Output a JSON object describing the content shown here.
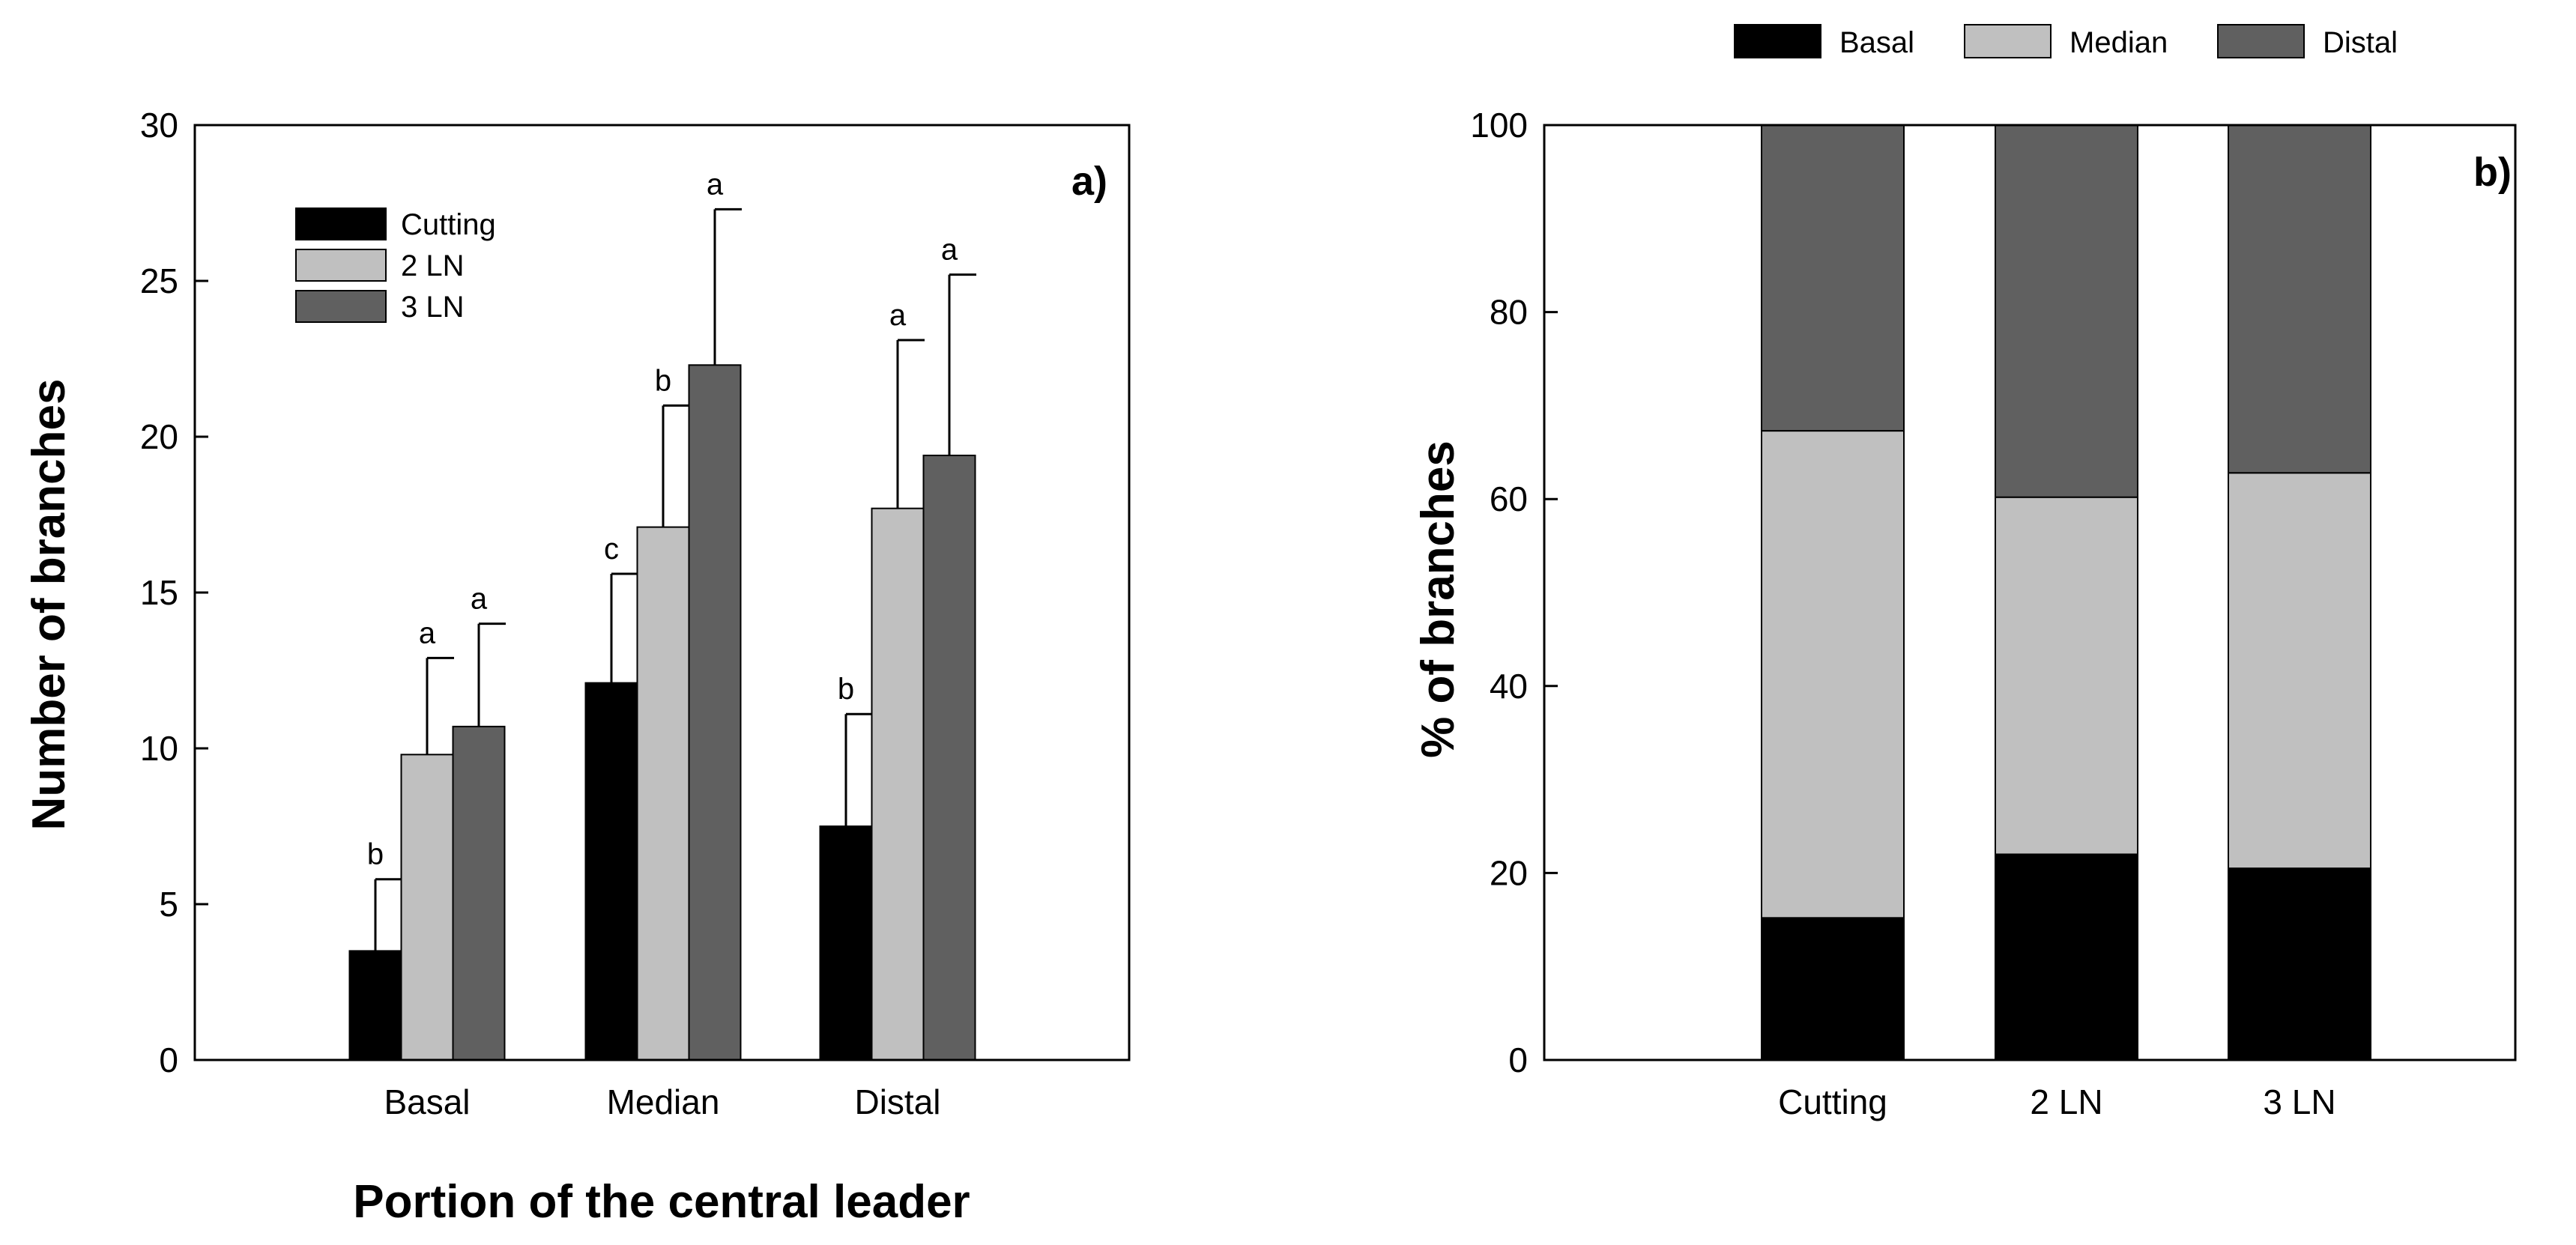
{
  "chart_data": [
    {
      "type": "bar",
      "panel_label": "a)",
      "xlabel": "Portion of the central leader",
      "ylabel": "Number of branches",
      "ylim": [
        0,
        30
      ],
      "yticks": [
        "0",
        "5",
        "10",
        "15",
        "20",
        "25",
        "30"
      ],
      "categories": [
        "Basal",
        "Median",
        "Distal"
      ],
      "legend_position": "top-left",
      "series": [
        {
          "name": "Cutting",
          "color": "#000000",
          "values": [
            3.5,
            12.1,
            7.5
          ],
          "errors": [
            2.3,
            3.5,
            3.6
          ],
          "letters": [
            "b",
            "c",
            "b"
          ]
        },
        {
          "name": "2 LN",
          "color": "#c0c0c0",
          "values": [
            9.8,
            17.1,
            17.7
          ],
          "errors": [
            3.1,
            3.9,
            5.4
          ],
          "letters": [
            "a",
            "b",
            "a"
          ]
        },
        {
          "name": "3 LN",
          "color": "#606060",
          "values": [
            10.7,
            22.3,
            19.4
          ],
          "errors": [
            3.3,
            5.0,
            5.8
          ],
          "letters": [
            "a",
            "a",
            "a"
          ]
        }
      ]
    },
    {
      "type": "bar",
      "stacked": true,
      "panel_label": "b)",
      "xlabel": "",
      "ylabel": "% of branches",
      "ylim": [
        0,
        100
      ],
      "yticks": [
        "0",
        "20",
        "40",
        "60",
        "80",
        "100"
      ],
      "categories": [
        "Cutting",
        "2 LN",
        "3 LN"
      ],
      "legend_position": "top (above plot)",
      "series": [
        {
          "name": "Basal",
          "color": "#000000",
          "values": [
            15.2,
            22.0,
            20.5
          ]
        },
        {
          "name": "Median",
          "color": "#c0c0c0",
          "values": [
            52.1,
            38.2,
            42.3
          ]
        },
        {
          "name": "Distal",
          "color": "#606060",
          "values": [
            32.7,
            39.8,
            37.2
          ]
        }
      ]
    }
  ]
}
